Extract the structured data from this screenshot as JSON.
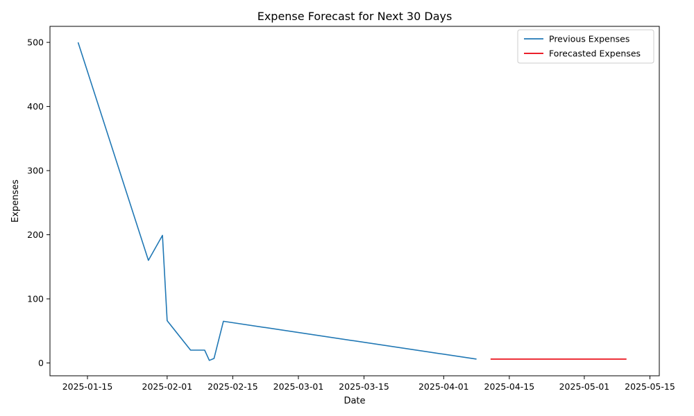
{
  "chart_data": {
    "type": "line",
    "title": "Expense Forecast for Next 30 Days",
    "xlabel": "Date",
    "ylabel": "Expenses",
    "x_type": "date",
    "xlim": [
      "2025-01-07",
      "2025-05-17"
    ],
    "ylim": [
      -20,
      525
    ],
    "x_ticks": [
      "2025-01-15",
      "2025-02-01",
      "2025-02-15",
      "2025-03-01",
      "2025-03-15",
      "2025-04-01",
      "2025-04-15",
      "2025-05-01",
      "2025-05-15"
    ],
    "y_ticks": [
      0,
      100,
      200,
      300,
      400,
      500
    ],
    "grid": false,
    "legend_position": "top-right",
    "series": [
      {
        "name": "Previous Expenses",
        "color": "#1f77b4",
        "x": [
          "2025-01-13",
          "2025-01-28",
          "2025-01-31",
          "2025-02-01",
          "2025-02-06",
          "2025-02-09",
          "2025-02-10",
          "2025-02-11",
          "2025-02-13",
          "2025-04-08"
        ],
        "y": [
          500,
          160,
          199,
          66,
          20,
          20,
          4,
          7,
          65,
          6
        ]
      },
      {
        "name": "Forecasted Expenses",
        "color": "#e8000b",
        "x": [
          "2025-04-11",
          "2025-05-10"
        ],
        "y": [
          6,
          6
        ]
      }
    ]
  }
}
